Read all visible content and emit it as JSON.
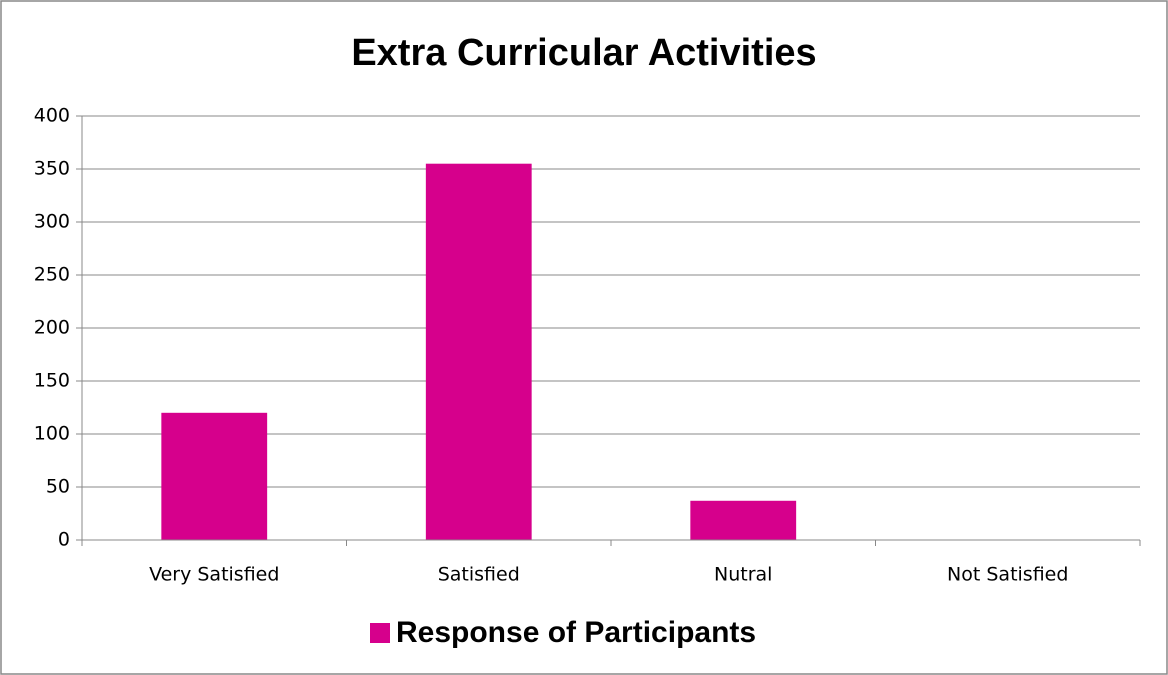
{
  "chart_data": {
    "type": "bar",
    "title": "Extra Curricular Activities",
    "categories": [
      "Very Satisfied",
      "Satisfied",
      "Nutral",
      "Not Satisfied"
    ],
    "series": [
      {
        "name": "Response of Participants",
        "color": "#d6008c",
        "values": [
          120,
          355,
          37,
          0
        ]
      }
    ],
    "ylim": [
      0,
      400
    ],
    "yticks": [
      0,
      50,
      100,
      150,
      200,
      250,
      300,
      350,
      400
    ],
    "grid": true,
    "legend": "bottom"
  }
}
